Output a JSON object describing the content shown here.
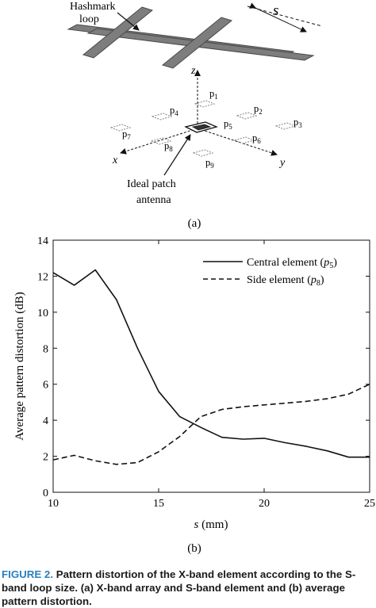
{
  "panel_a": {
    "loop_label_line1": "Hashmark",
    "loop_label_line2": "loop",
    "s_label": "s",
    "z_label": "z",
    "x_label": "x",
    "y_label": "y",
    "patch_label_line1": "Ideal patch",
    "patch_label_line2": "antenna",
    "points": [
      {
        "name": "p",
        "sub": "1"
      },
      {
        "name": "p",
        "sub": "2"
      },
      {
        "name": "p",
        "sub": "3"
      },
      {
        "name": "p",
        "sub": "4"
      },
      {
        "name": "p",
        "sub": "5"
      },
      {
        "name": "p",
        "sub": "6"
      },
      {
        "name": "p",
        "sub": "7"
      },
      {
        "name": "p",
        "sub": "8"
      },
      {
        "name": "p",
        "sub": "9"
      }
    ],
    "sublabel": "(a)"
  },
  "panel_b": {
    "sublabel": "(b)"
  },
  "caption": {
    "label": "FIGURE 2.",
    "text": "Pattern distortion of the X-band element according to the S-band loop size. (a) X-band array and S-band element and (b) average pattern distortion."
  },
  "chart_data": {
    "type": "line",
    "title": "",
    "xlabel_var": "s",
    "xlabel_unit": "(mm)",
    "ylabel": "Average pattern distortion (dB)",
    "xlim": [
      10,
      25
    ],
    "ylim": [
      0,
      14
    ],
    "xticks": [
      10,
      15,
      20,
      25
    ],
    "yticks": [
      0,
      2,
      4,
      6,
      8,
      10,
      12,
      14
    ],
    "grid": false,
    "legend_position": "top-right",
    "series": [
      {
        "name": "Central element",
        "legend_var": "p",
        "legend_sub": "5",
        "style": "solid",
        "x": [
          10,
          11,
          12,
          13,
          14,
          15,
          16,
          17,
          18,
          19,
          20,
          21,
          22,
          23,
          24,
          25
        ],
        "y": [
          12.2,
          11.5,
          12.35,
          10.7,
          8.0,
          5.6,
          4.2,
          3.6,
          3.05,
          2.95,
          3.0,
          2.75,
          2.55,
          2.3,
          1.95,
          1.95
        ]
      },
      {
        "name": "Side element",
        "legend_var": "p",
        "legend_sub": "8",
        "style": "dashed",
        "x": [
          10,
          11,
          12,
          13,
          14,
          15,
          16,
          17,
          18,
          19,
          20,
          21,
          22,
          23,
          24,
          25
        ],
        "y": [
          1.8,
          2.05,
          1.75,
          1.55,
          1.65,
          2.25,
          3.1,
          4.2,
          4.6,
          4.75,
          4.85,
          4.95,
          5.05,
          5.2,
          5.45,
          6.0
        ]
      }
    ]
  }
}
